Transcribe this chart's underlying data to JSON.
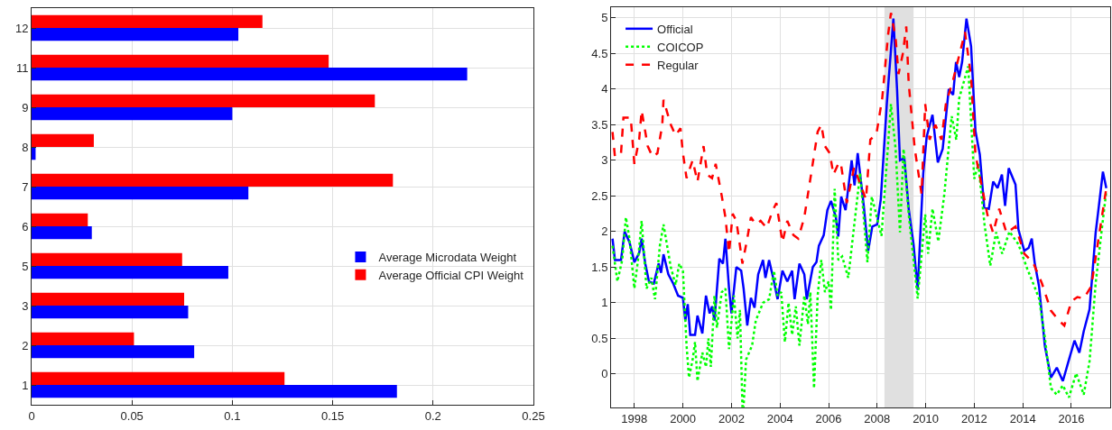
{
  "chart_data": [
    {
      "type": "bar",
      "orientation": "horizontal",
      "categories": [
        "12",
        "11",
        "9",
        "8",
        "7",
        "6",
        "5",
        "3",
        "2",
        "1"
      ],
      "series": [
        {
          "name": "Average Microdata Weight",
          "color": "#0000ff",
          "values": [
            0.103,
            0.217,
            0.1,
            0.002,
            0.108,
            0.03,
            0.098,
            0.078,
            0.081,
            0.182
          ]
        },
        {
          "name": "Average Official CPI Weight",
          "color": "#ff0000",
          "values": [
            0.115,
            0.148,
            0.171,
            0.031,
            0.18,
            0.028,
            0.075,
            0.076,
            0.051,
            0.126
          ]
        }
      ],
      "xlim": [
        0,
        0.25
      ],
      "xticks": [
        0,
        0.05,
        0.1,
        0.15,
        0.2,
        0.25
      ],
      "grid": true,
      "legend": "right"
    },
    {
      "type": "line",
      "xlim": [
        1997.04,
        2017.6
      ],
      "xticks": [
        {
          "value": 1998,
          "label": "1998"
        },
        {
          "value": 2000,
          "label": "2000"
        },
        {
          "value": 2002,
          "label": "2002"
        },
        {
          "value": 2004,
          "label": "2004"
        },
        {
          "value": 2006,
          "label": "2006"
        },
        {
          "value": 2008,
          "label": "2008"
        },
        {
          "value": 2010,
          "label": "2010"
        },
        {
          "value": 2012,
          "label": "2012"
        },
        {
          "value": 2014,
          "label": "2014"
        },
        {
          "value": 2016,
          "label": "2016"
        }
      ],
      "ylim": [
        -0.47,
        5.15
      ],
      "yticks": [
        0,
        0.5,
        1,
        1.5,
        2,
        2.5,
        3,
        3.5,
        4,
        4.5,
        5
      ],
      "grid": true,
      "legend": "top left",
      "bands": [
        {
          "axis": "x",
          "from": 2008.3,
          "to": 2009.5,
          "color": "#e0e0e0"
        }
      ],
      "series": [
        {
          "name": "Official",
          "color": "#0000ff",
          "line_style": "solid",
          "x": [
            1997.1,
            1997.2,
            1997.45,
            1997.6,
            1997.8,
            1998.0,
            1998.2,
            1998.3,
            1998.45,
            1998.6,
            1998.8,
            1999.0,
            1999.1,
            1999.2,
            1999.4,
            1999.6,
            1999.8,
            2000.0,
            2000.1,
            2000.2,
            2000.3,
            2000.5,
            2000.6,
            2000.8,
            2000.95,
            2001.1,
            2001.2,
            2001.3,
            2001.5,
            2001.65,
            2001.75,
            2001.9,
            2002.0,
            2002.2,
            2002.4,
            2002.5,
            2002.65,
            2002.8,
            2002.95,
            2003.1,
            2003.3,
            2003.4,
            2003.55,
            2003.75,
            2003.9,
            2004.1,
            2004.3,
            2004.5,
            2004.6,
            2004.8,
            2005.0,
            2005.1,
            2005.35,
            2005.5,
            2005.6,
            2005.8,
            2005.95,
            2006.1,
            2006.3,
            2006.4,
            2006.52,
            2006.7,
            2006.95,
            2007.07,
            2007.2,
            2007.45,
            2007.63,
            2007.8,
            2008.0,
            2008.15,
            2008.4,
            2008.67,
            2008.82,
            2008.94,
            2009.12,
            2009.3,
            2009.5,
            2009.67,
            2009.9,
            2010.04,
            2010.28,
            2010.5,
            2010.7,
            2010.95,
            2011.13,
            2011.25,
            2011.38,
            2011.5,
            2011.68,
            2011.87,
            2012.05,
            2012.23,
            2012.41,
            2012.6,
            2012.78,
            2012.96,
            2013.14,
            2013.27,
            2013.42,
            2013.7,
            2013.82,
            2014.06,
            2014.24,
            2014.37,
            2014.49,
            2014.67,
            2014.91,
            2015.16,
            2015.4,
            2015.65,
            2015.9,
            2016.13,
            2016.33,
            2016.51,
            2016.75,
            2017.0,
            2017.12,
            2017.3,
            2017.44
          ],
          "values": [
            1.9,
            1.6,
            1.6,
            2.0,
            1.85,
            1.57,
            1.7,
            1.9,
            1.55,
            1.3,
            1.27,
            1.55,
            1.42,
            1.68,
            1.4,
            1.27,
            1.1,
            1.07,
            0.75,
            0.98,
            0.55,
            0.55,
            0.82,
            0.57,
            1.1,
            0.85,
            0.95,
            0.75,
            1.62,
            1.55,
            1.9,
            1.2,
            0.85,
            1.5,
            1.45,
            1.2,
            0.68,
            1.07,
            0.93,
            1.4,
            1.6,
            1.35,
            1.6,
            1.3,
            1.05,
            1.45,
            1.3,
            1.45,
            1.05,
            1.55,
            1.4,
            1.05,
            1.5,
            1.57,
            1.8,
            1.95,
            2.3,
            2.43,
            2.2,
            1.93,
            2.49,
            2.3,
            3.0,
            2.65,
            3.1,
            2.36,
            1.73,
            2.07,
            2.1,
            2.45,
            3.8,
            4.99,
            4.0,
            3.0,
            3.03,
            2.32,
            1.82,
            1.18,
            2.82,
            3.33,
            3.64,
            2.97,
            3.16,
            4.0,
            3.92,
            4.38,
            4.17,
            4.38,
            4.99,
            4.6,
            3.41,
            3.08,
            2.34,
            2.32,
            2.7,
            2.61,
            2.8,
            2.36,
            2.89,
            2.66,
            2.03,
            1.73,
            1.77,
            1.9,
            1.56,
            1.23,
            0.39,
            -0.05,
            0.09,
            -0.1,
            0.2,
            0.47,
            0.3,
            0.6,
            0.91,
            1.98,
            2.32,
            2.84,
            2.61
          ]
        },
        {
          "name": "COICOP",
          "color": "#00ff00",
          "line_style": "dotted",
          "x": [
            1997.1,
            1997.3,
            1997.5,
            1997.65,
            1997.8,
            1998.0,
            1998.15,
            1998.3,
            1998.5,
            1998.7,
            1998.85,
            1999.05,
            1999.2,
            1999.5,
            1999.7,
            1999.85,
            2000.0,
            2000.15,
            2000.25,
            2000.4,
            2000.5,
            2000.6,
            2000.8,
            2000.95,
            2001.05,
            2001.15,
            2001.3,
            2001.4,
            2001.6,
            2001.75,
            2001.9,
            2002.1,
            2002.25,
            2002.35,
            2002.45,
            2002.5,
            2002.6,
            2002.85,
            2003.0,
            2003.3,
            2003.55,
            2003.75,
            2003.9,
            2004.05,
            2004.2,
            2004.35,
            2004.5,
            2004.65,
            2004.8,
            2005.0,
            2005.15,
            2005.25,
            2005.4,
            2005.55,
            2005.7,
            2005.85,
            2006.0,
            2006.1,
            2006.25,
            2006.4,
            2006.56,
            2006.81,
            2007.3,
            2007.6,
            2007.78,
            2008.18,
            2008.57,
            2008.76,
            2008.94,
            2009.09,
            2009.3,
            2009.67,
            2009.98,
            2010.1,
            2010.28,
            2010.52,
            2010.77,
            2011.07,
            2011.26,
            2011.38,
            2011.75,
            2012.0,
            2012.17,
            2012.42,
            2012.66,
            2012.9,
            2013.15,
            2013.45,
            2013.82,
            2014.18,
            2014.43,
            2014.67,
            2014.91,
            2015.16,
            2015.4,
            2015.65,
            2015.9,
            2016.2,
            2016.51,
            2016.75,
            2017.0,
            2017.24,
            2017.44
          ],
          "values": [
            1.8,
            1.3,
            1.6,
            2.2,
            1.9,
            1.2,
            1.6,
            2.15,
            1.2,
            1.35,
            1.05,
            1.8,
            2.1,
            1.5,
            1.25,
            1.55,
            1.45,
            0.4,
            -0.05,
            0.2,
            0.45,
            -0.1,
            0.3,
            0.1,
            0.5,
            0.1,
            1.1,
            0.65,
            1.15,
            1.2,
            0.35,
            1.1,
            0.5,
            0.9,
            -0.45,
            -0.45,
            0.2,
            0.4,
            0.75,
            1.0,
            1.05,
            1.45,
            1.1,
            1.15,
            0.45,
            1.0,
            0.55,
            0.95,
            0.4,
            1.1,
            0.7,
            1.15,
            -0.2,
            1.1,
            1.6,
            1.15,
            1.3,
            0.9,
            2.6,
            1.6,
            1.65,
            1.35,
            2.82,
            1.57,
            2.49,
            1.94,
            3.79,
            3.16,
            1.99,
            3.16,
            2.24,
            1.06,
            2.24,
            1.69,
            2.32,
            1.86,
            2.53,
            3.62,
            3.29,
            3.87,
            4.32,
            2.74,
            2.95,
            2.11,
            1.52,
            1.99,
            1.69,
            2.0,
            1.82,
            1.48,
            1.27,
            1.06,
            0.51,
            -0.2,
            -0.29,
            -0.16,
            -0.33,
            0.01,
            -0.29,
            0.18,
            1.27,
            1.99,
            2.57
          ]
        },
        {
          "name": "Regular",
          "color": "#ff0000",
          "line_style": "dashed",
          "x": [
            1997.1,
            1997.2,
            1997.45,
            1997.55,
            1997.85,
            1998.0,
            1998.2,
            1998.3,
            1998.55,
            1998.75,
            1998.95,
            1999.15,
            1999.2,
            1999.5,
            1999.7,
            1999.9,
            2000.0,
            2000.15,
            2000.4,
            2000.6,
            2000.85,
            2001.0,
            2001.2,
            2001.35,
            2001.6,
            2001.75,
            2001.9,
            2002.05,
            2002.2,
            2002.35,
            2002.45,
            2002.65,
            2002.8,
            2003.0,
            2003.2,
            2003.45,
            2003.7,
            2003.85,
            2004.1,
            2004.3,
            2004.55,
            2004.75,
            2005.0,
            2005.3,
            2005.55,
            2005.7,
            2005.85,
            2006.05,
            2006.2,
            2006.4,
            2006.5,
            2006.75,
            2007.05,
            2007.54,
            2007.72,
            2007.97,
            2008.21,
            2008.45,
            2008.57,
            2008.76,
            2008.88,
            2009.06,
            2009.2,
            2009.3,
            2009.55,
            2009.83,
            2009.98,
            2010.16,
            2010.4,
            2010.65,
            2010.83,
            2011.13,
            2011.62,
            2011.87,
            2012.05,
            2012.35,
            2012.54,
            2012.78,
            2013.03,
            2013.33,
            2013.7,
            2014.06,
            2014.43,
            2014.79,
            2015.16,
            2015.46,
            2015.71,
            2016.0,
            2016.25,
            2016.51,
            2016.82,
            2017.12,
            2017.44
          ],
          "values": [
            3.4,
            3.05,
            3.1,
            3.6,
            3.6,
            2.95,
            3.3,
            3.7,
            3.2,
            3.05,
            3.1,
            3.5,
            3.85,
            3.5,
            3.35,
            3.45,
            3.1,
            2.75,
            3.0,
            2.7,
            3.2,
            2.8,
            2.75,
            2.95,
            2.5,
            2.2,
            1.7,
            2.25,
            2.15,
            1.8,
            1.55,
            1.9,
            2.2,
            2.1,
            2.15,
            2.05,
            2.3,
            2.4,
            1.85,
            2.15,
            1.95,
            1.9,
            2.2,
            2.85,
            3.4,
            3.5,
            3.2,
            3.1,
            2.8,
            2.95,
            2.97,
            2.4,
            2.9,
            2.45,
            3.29,
            3.37,
            3.87,
            4.76,
            5.07,
            4.72,
            4.21,
            4.5,
            4.88,
            4.08,
            3.16,
            2.53,
            3.79,
            3.29,
            3.5,
            3.29,
            3.79,
            4.13,
            4.8,
            4.17,
            3.08,
            2.57,
            2.24,
            1.98,
            2.32,
            1.98,
            2.07,
            1.69,
            1.56,
            1.27,
            0.89,
            0.76,
            0.68,
            1.02,
            1.08,
            1.06,
            1.23,
            1.9,
            2.61
          ]
        }
      ]
    }
  ]
}
